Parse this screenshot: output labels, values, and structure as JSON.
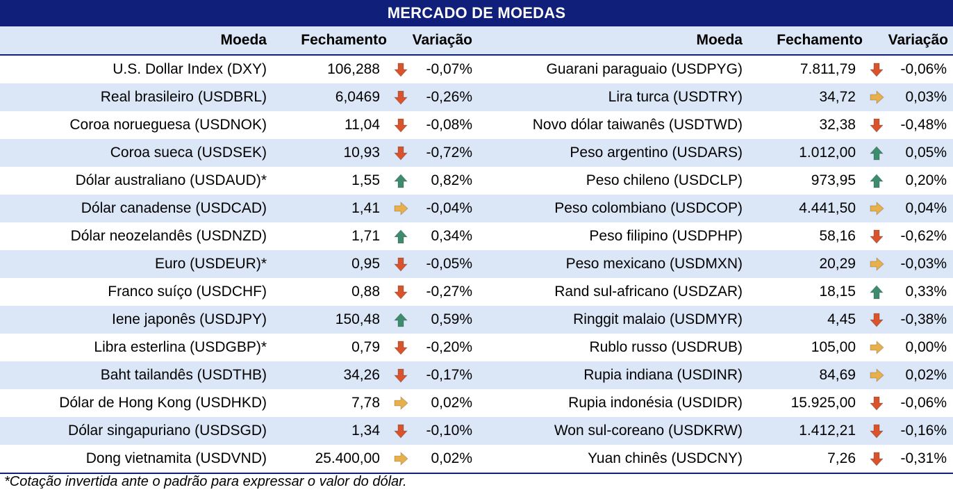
{
  "title": "MERCADO DE MOEDAS",
  "headers": {
    "currency": "Moeda",
    "close": "Fechamento",
    "change": "Variação"
  },
  "colors": {
    "header_bg": "#0f1f7a",
    "stripe": "#dbe6f6",
    "down": "#d9532c",
    "up": "#3d8c6e",
    "flat": "#e8b04a"
  },
  "left": [
    {
      "name": "U.S. Dollar Index (DXY)",
      "close": "106,288",
      "trend": "down",
      "change": "-0,07%"
    },
    {
      "name": "Real brasileiro (USDBRL)",
      "close": "6,0469",
      "trend": "down",
      "change": "-0,26%"
    },
    {
      "name": "Coroa norueguesa (USDNOK)",
      "close": "11,04",
      "trend": "down",
      "change": "-0,08%"
    },
    {
      "name": "Coroa sueca (USDSEK)",
      "close": "10,93",
      "trend": "down",
      "change": "-0,72%"
    },
    {
      "name": "Dólar australiano (USDAUD)*",
      "close": "1,55",
      "trend": "up",
      "change": "0,82%"
    },
    {
      "name": "Dólar canadense (USDCAD)",
      "close": "1,41",
      "trend": "flat",
      "change": "-0,04%"
    },
    {
      "name": "Dólar neozelandês (USDNZD)",
      "close": "1,71",
      "trend": "up",
      "change": "0,34%"
    },
    {
      "name": "Euro (USDEUR)*",
      "close": "0,95",
      "trend": "down",
      "change": "-0,05%"
    },
    {
      "name": "Franco suíço (USDCHF)",
      "close": "0,88",
      "trend": "down",
      "change": "-0,27%"
    },
    {
      "name": "Iene japonês (USDJPY)",
      "close": "150,48",
      "trend": "up",
      "change": "0,59%"
    },
    {
      "name": "Libra esterlina (USDGBP)*",
      "close": "0,79",
      "trend": "down",
      "change": "-0,20%"
    },
    {
      "name": "Baht tailandês (USDTHB)",
      "close": "34,26",
      "trend": "down",
      "change": "-0,17%"
    },
    {
      "name": "Dólar de Hong Kong (USDHKD)",
      "close": "7,78",
      "trend": "flat",
      "change": "0,02%"
    },
    {
      "name": "Dólar singapuriano (USDSGD)",
      "close": "1,34",
      "trend": "down",
      "change": "-0,10%"
    },
    {
      "name": "Dong vietnamita (USDVND)",
      "close": "25.400,00",
      "trend": "flat",
      "change": "0,02%"
    }
  ],
  "right": [
    {
      "name": "Guarani paraguaio (USDPYG)",
      "close": "7.811,79",
      "trend": "down",
      "change": "-0,06%"
    },
    {
      "name": "Lira turca (USDTRY)",
      "close": "34,72",
      "trend": "flat",
      "change": "0,03%"
    },
    {
      "name": "Novo dólar taiwanês (USDTWD)",
      "close": "32,38",
      "trend": "down",
      "change": "-0,48%"
    },
    {
      "name": "Peso argentino (USDARS)",
      "close": "1.012,00",
      "trend": "up",
      "change": "0,05%"
    },
    {
      "name": "Peso chileno (USDCLP)",
      "close": "973,95",
      "trend": "up",
      "change": "0,20%"
    },
    {
      "name": "Peso colombiano (USDCOP)",
      "close": "4.441,50",
      "trend": "flat",
      "change": "0,04%"
    },
    {
      "name": "Peso filipino (USDPHP)",
      "close": "58,16",
      "trend": "down",
      "change": "-0,62%"
    },
    {
      "name": "Peso mexicano (USDMXN)",
      "close": "20,29",
      "trend": "flat",
      "change": "-0,03%"
    },
    {
      "name": "Rand sul-africano (USDZAR)",
      "close": "18,15",
      "trend": "up",
      "change": "0,33%"
    },
    {
      "name": "Ringgit malaio (USDMYR)",
      "close": "4,45",
      "trend": "down",
      "change": "-0,38%"
    },
    {
      "name": "Rublo russo (USDRUB)",
      "close": "105,00",
      "trend": "flat",
      "change": "0,00%"
    },
    {
      "name": "Rupia indiana (USDINR)",
      "close": "84,69",
      "trend": "flat",
      "change": "0,02%"
    },
    {
      "name": "Rupia indonésia (USDIDR)",
      "close": "15.925,00",
      "trend": "down",
      "change": "-0,06%"
    },
    {
      "name": "Won sul-coreano (USDKRW)",
      "close": "1.412,21",
      "trend": "down",
      "change": "-0,16%"
    },
    {
      "name": "Yuan chinês (USDCNY)",
      "close": "7,26",
      "trend": "down",
      "change": "-0,31%"
    }
  ],
  "footnote": "*Cotação invertida ante o padrão para expressar o valor do dólar."
}
